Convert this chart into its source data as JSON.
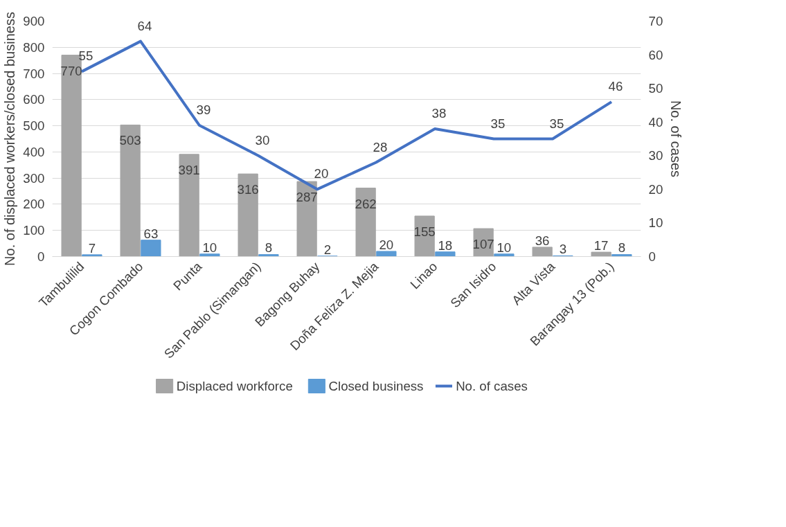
{
  "chart_data": {
    "type": "bar",
    "categories": [
      "Tambulilid",
      "Cogon Combado",
      "Punta",
      "San Pablo (Simangan)",
      "Bagong Buhay",
      "Doña Feliza Z. Mejia",
      "Linao",
      "San Isidro",
      "Alta Vista",
      "Barangay 13 (Pob.)"
    ],
    "series": [
      {
        "name": "Displaced workforce",
        "color": "#a5a5a5",
        "values": [
          770,
          503,
          391,
          316,
          287,
          262,
          155,
          107,
          36,
          17
        ]
      },
      {
        "name": "Closed business",
        "color": "#5b9bd5",
        "values": [
          7,
          63,
          10,
          8,
          2,
          20,
          18,
          10,
          3,
          8
        ]
      },
      {
        "name": "No. of cases",
        "type": "line",
        "axis": "y2",
        "color": "#4472c4",
        "values": [
          55,
          64,
          39,
          30,
          20,
          28,
          38,
          35,
          35,
          46
        ]
      }
    ],
    "ylabel": "No. of displaced workers/closed business",
    "y2label": "No. of cases",
    "ylim": [
      0,
      900
    ],
    "yticks": [
      0,
      100,
      200,
      300,
      400,
      500,
      600,
      700,
      800,
      900
    ],
    "y2lim": [
      0,
      70
    ],
    "y2ticks": [
      0,
      10,
      20,
      30,
      40,
      50,
      60,
      70
    ],
    "grid": "y",
    "legend": "bottom",
    "data_labels": true
  }
}
